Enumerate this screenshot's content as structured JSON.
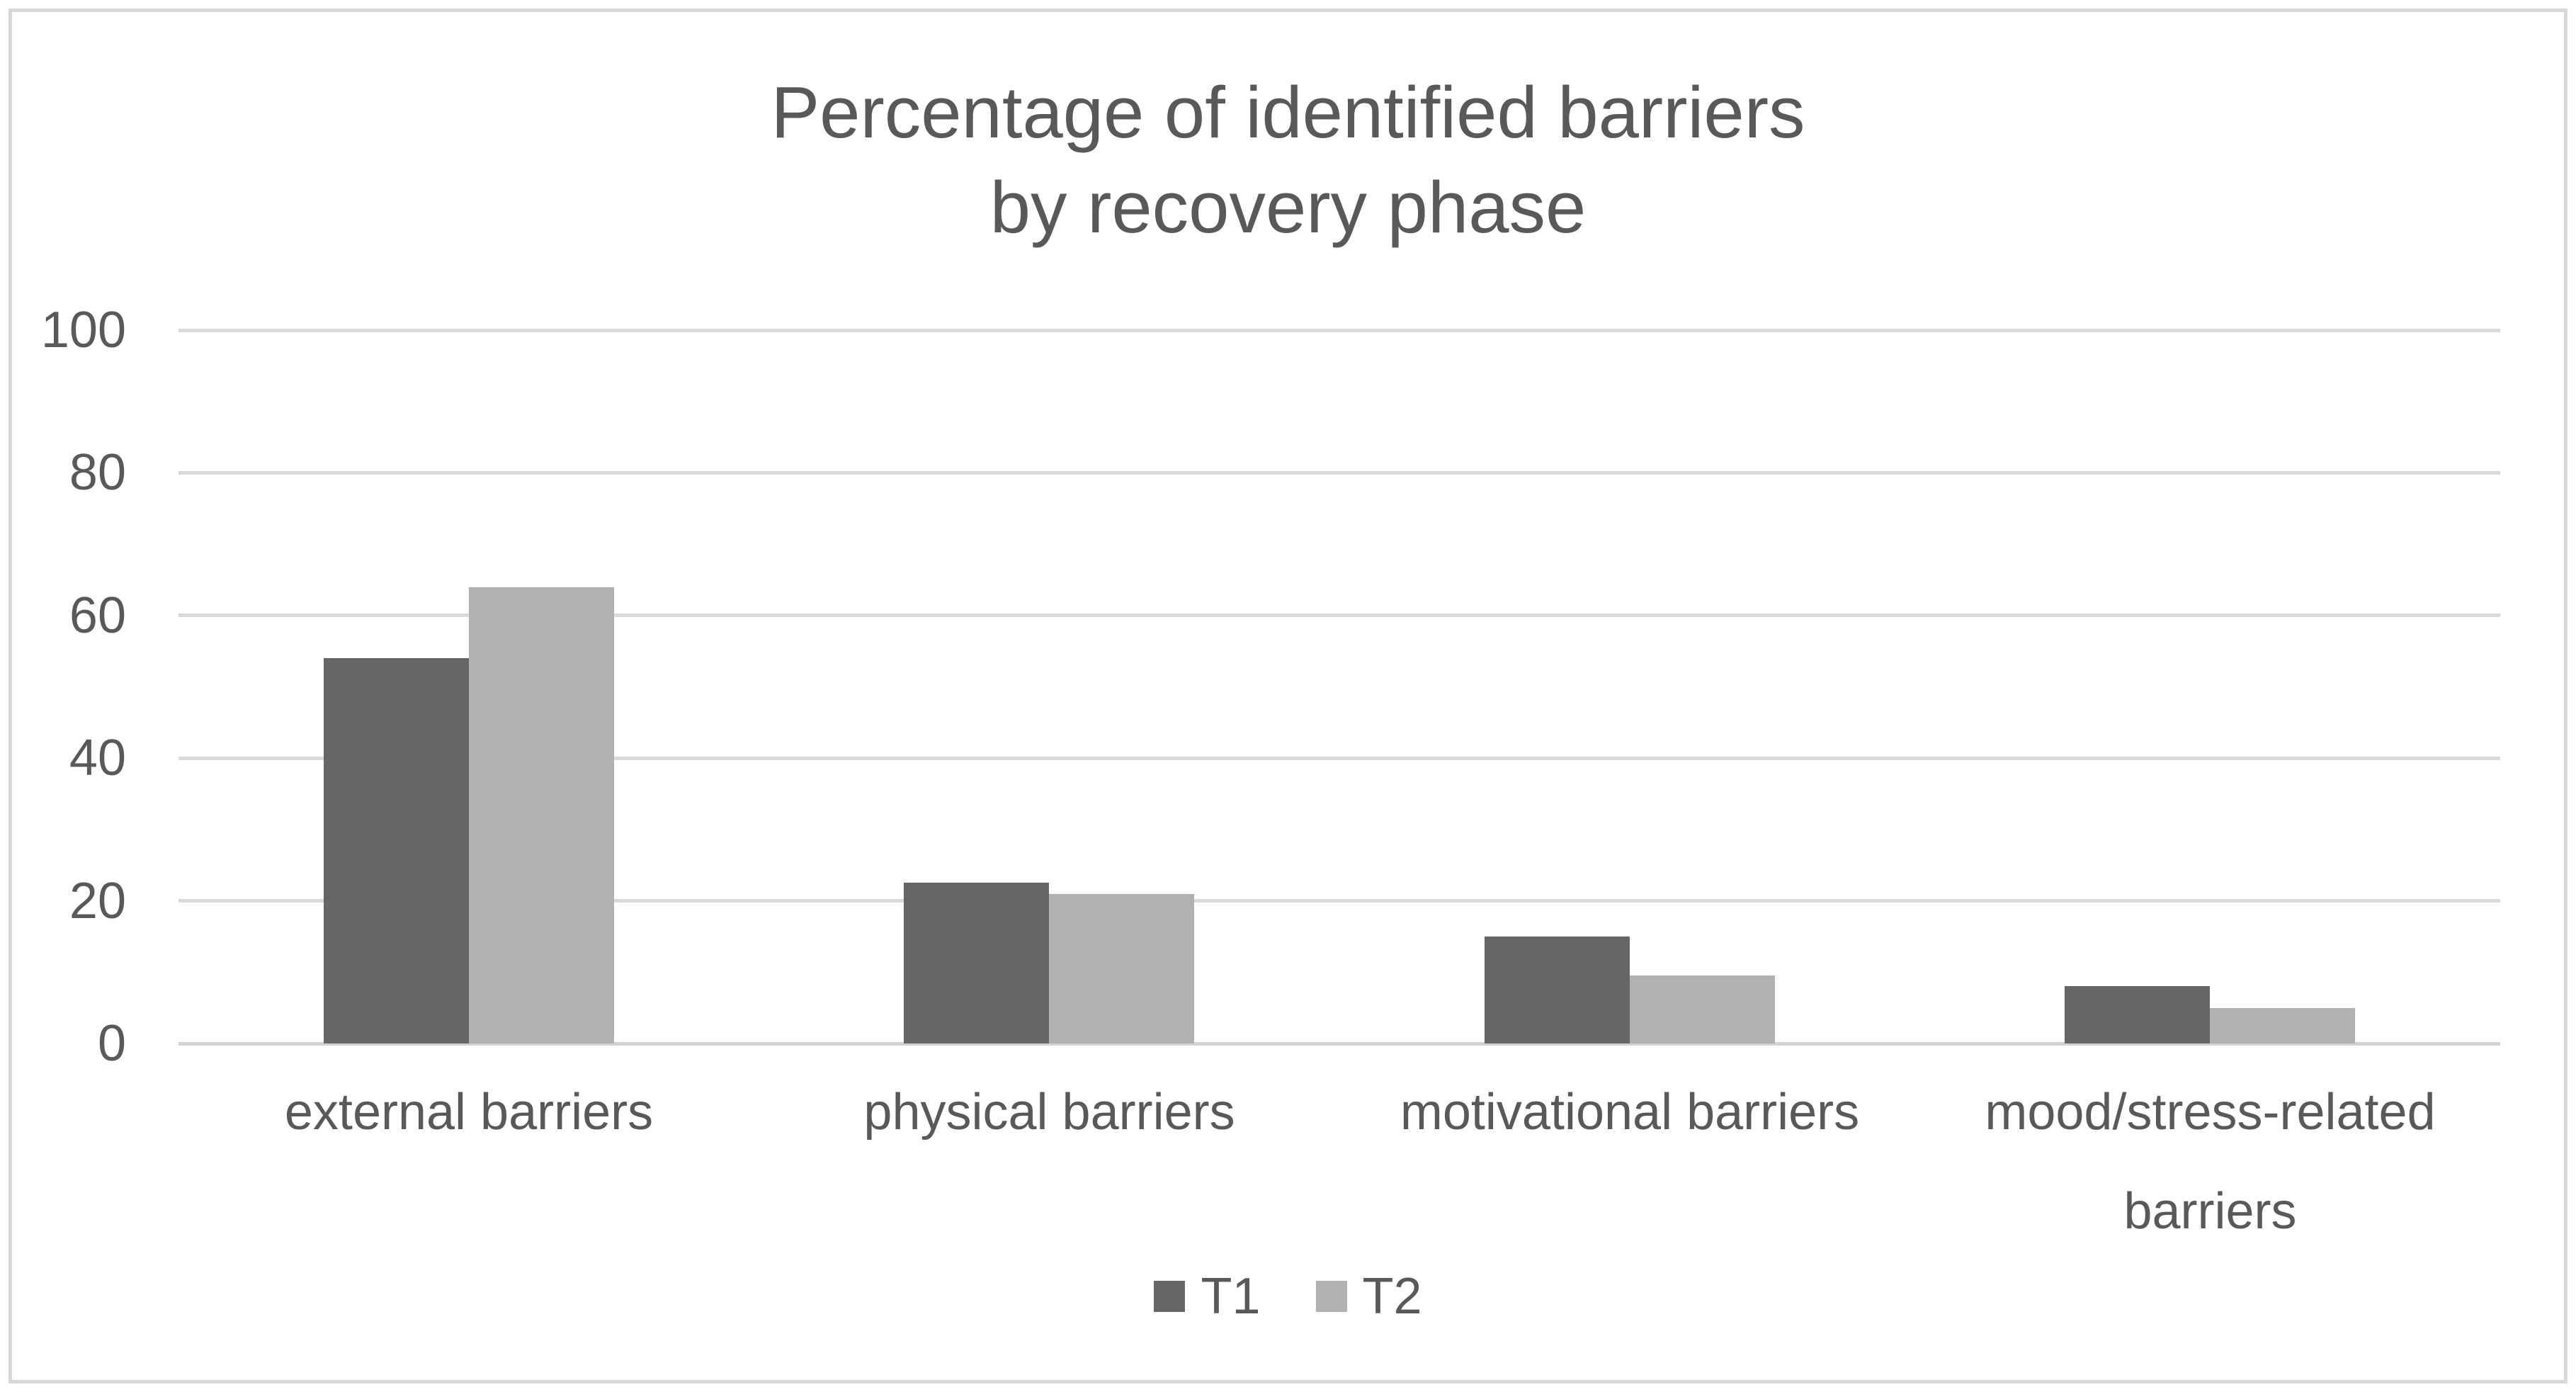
{
  "figure": {
    "title_lines": [
      "Percentage of identified barriers",
      "by recovery phase"
    ]
  },
  "chart_data": {
    "type": "bar",
    "title": "Percentage of identified barriers by recovery phase",
    "categories": [
      "external barriers",
      "physical barriers",
      "motivational barriers",
      "mood/stress-related barriers"
    ],
    "series": [
      {
        "name": "T1",
        "color": "#666666",
        "values": [
          54,
          22.5,
          15,
          8
        ]
      },
      {
        "name": "T2",
        "color": "#B1B1B1",
        "values": [
          64,
          21,
          9.5,
          5
        ]
      }
    ],
    "xlabel": "",
    "ylabel": "",
    "ylim": [
      0,
      100
    ],
    "yticks": [
      0,
      20,
      40,
      60,
      80,
      100
    ],
    "grid": true,
    "legend_position": "bottom",
    "colors": {
      "grid": "#D9D9D9",
      "axis": "#D2D2D2",
      "text": "#595959",
      "border": "#D8D8D8",
      "background": "#FFFFFF"
    }
  }
}
